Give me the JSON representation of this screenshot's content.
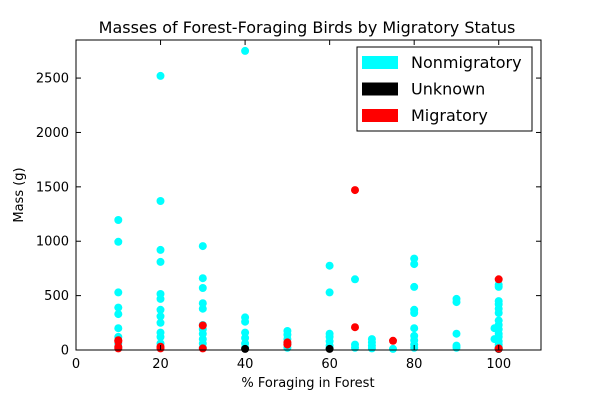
{
  "chart_data": {
    "type": "scatter",
    "title": "Masses of Forest-Foraging Birds by Migratory Status",
    "xlabel": "% Foraging in Forest",
    "ylabel": "Mass (g)",
    "xlim": [
      0,
      110
    ],
    "ylim": [
      0,
      2850
    ],
    "xticks": [
      0,
      20,
      40,
      60,
      80,
      100
    ],
    "yticks": [
      0,
      500,
      1000,
      1500,
      2000,
      2500
    ],
    "grid": false,
    "legend_position": "top-right",
    "series": [
      {
        "name": "Nonmigratory",
        "color": "#00ffff",
        "points": [
          [
            10,
            1195
          ],
          [
            10,
            995
          ],
          [
            10,
            530
          ],
          [
            10,
            390
          ],
          [
            10,
            330
          ],
          [
            10,
            200
          ],
          [
            10,
            120
          ],
          [
            10,
            60
          ],
          [
            10,
            20
          ],
          [
            20,
            2520
          ],
          [
            20,
            1370
          ],
          [
            20,
            920
          ],
          [
            20,
            810
          ],
          [
            20,
            515
          ],
          [
            20,
            470
          ],
          [
            20,
            370
          ],
          [
            20,
            310
          ],
          [
            20,
            250
          ],
          [
            20,
            160
          ],
          [
            20,
            120
          ],
          [
            20,
            60
          ],
          [
            20,
            30
          ],
          [
            30,
            955
          ],
          [
            30,
            660
          ],
          [
            30,
            570
          ],
          [
            30,
            430
          ],
          [
            30,
            380
          ],
          [
            30,
            230
          ],
          [
            30,
            190
          ],
          [
            30,
            150
          ],
          [
            30,
            100
          ],
          [
            30,
            60
          ],
          [
            30,
            20
          ],
          [
            40,
            2750
          ],
          [
            40,
            300
          ],
          [
            40,
            260
          ],
          [
            40,
            160
          ],
          [
            40,
            110
          ],
          [
            40,
            60
          ],
          [
            40,
            20
          ],
          [
            50,
            175
          ],
          [
            50,
            140
          ],
          [
            50,
            100
          ],
          [
            50,
            60
          ],
          [
            50,
            20
          ],
          [
            60,
            775
          ],
          [
            60,
            530
          ],
          [
            60,
            150
          ],
          [
            60,
            120
          ],
          [
            60,
            80
          ],
          [
            60,
            40
          ],
          [
            60,
            15
          ],
          [
            66,
            650
          ],
          [
            66,
            50
          ],
          [
            66,
            20
          ],
          [
            70,
            100
          ],
          [
            70,
            70
          ],
          [
            70,
            40
          ],
          [
            70,
            15
          ],
          [
            75,
            10
          ],
          [
            80,
            840
          ],
          [
            80,
            790
          ],
          [
            80,
            580
          ],
          [
            80,
            370
          ],
          [
            80,
            340
          ],
          [
            80,
            200
          ],
          [
            80,
            130
          ],
          [
            80,
            90
          ],
          [
            80,
            50
          ],
          [
            80,
            20
          ],
          [
            90,
            470
          ],
          [
            90,
            440
          ],
          [
            90,
            150
          ],
          [
            90,
            40
          ],
          [
            90,
            20
          ],
          [
            99,
            200
          ],
          [
            99,
            100
          ],
          [
            100,
            600
          ],
          [
            100,
            580
          ],
          [
            100,
            450
          ],
          [
            100,
            420
          ],
          [
            100,
            380
          ],
          [
            100,
            340
          ],
          [
            100,
            270
          ],
          [
            100,
            230
          ],
          [
            100,
            190
          ],
          [
            100,
            150
          ],
          [
            100,
            120
          ],
          [
            100,
            80
          ],
          [
            100,
            50
          ],
          [
            100,
            25
          ]
        ]
      },
      {
        "name": "Unknown",
        "color": "#000000",
        "points": [
          [
            40,
            10
          ],
          [
            60,
            10
          ],
          [
            100,
            10
          ]
        ]
      },
      {
        "name": "Migratory",
        "color": "#ff0000",
        "points": [
          [
            10,
            90
          ],
          [
            10,
            80
          ],
          [
            10,
            30
          ],
          [
            10,
            15
          ],
          [
            20,
            30
          ],
          [
            20,
            15
          ],
          [
            30,
            225
          ],
          [
            30,
            15
          ],
          [
            50,
            70
          ],
          [
            50,
            50
          ],
          [
            66,
            1470
          ],
          [
            66,
            210
          ],
          [
            75,
            85
          ],
          [
            100,
            650
          ],
          [
            100,
            15
          ]
        ]
      }
    ]
  }
}
